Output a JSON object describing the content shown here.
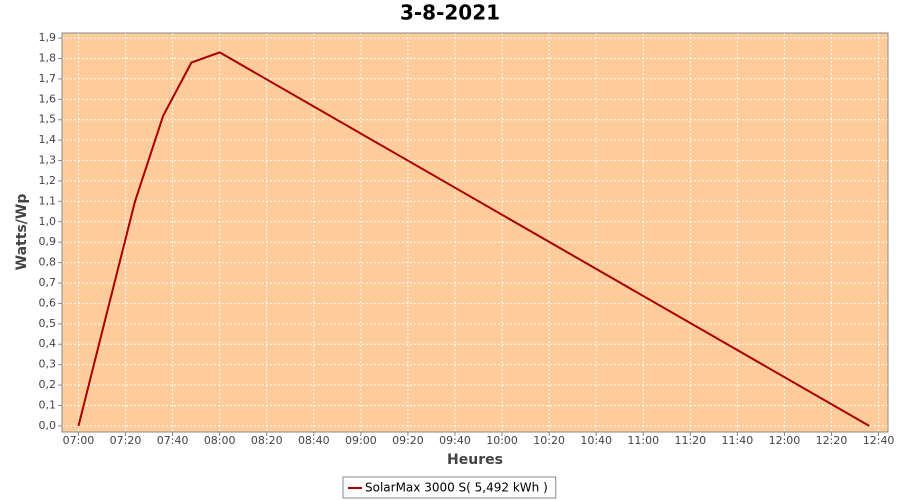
{
  "chart_data": {
    "type": "line",
    "title": "3-8-2021",
    "xlabel": "Heures",
    "ylabel": "Watts/Wp",
    "x": [
      "07:00",
      "07:12",
      "07:24",
      "07:36",
      "07:48",
      "08:00",
      "12:36"
    ],
    "series": [
      {
        "name": "SolarMax 3000 S( 5,492 kWh )",
        "color": "#aa0000",
        "values": [
          0,
          0.55,
          1.1,
          1.52,
          1.78,
          1.83,
          0
        ]
      }
    ],
    "xlim": [
      "06:53",
      "12:44"
    ],
    "xticks": [
      "07:00",
      "07:20",
      "07:40",
      "08:00",
      "08:20",
      "08:40",
      "09:00",
      "09:20",
      "09:40",
      "10:00",
      "10:20",
      "10:40",
      "11:00",
      "11:20",
      "11:40",
      "12:00",
      "12:20",
      "12:40"
    ],
    "ylim": [
      -0.03,
      1.925
    ],
    "yticks": [
      {
        "value": 0,
        "label": "0,0"
      },
      {
        "value": 0.1,
        "label": "0,1"
      },
      {
        "value": 0.2,
        "label": "0,2"
      },
      {
        "value": 0.3,
        "label": "0,3"
      },
      {
        "value": 0.4,
        "label": "0,4"
      },
      {
        "value": 0.5,
        "label": "0,5"
      },
      {
        "value": 0.6,
        "label": "0,6"
      },
      {
        "value": 0.7,
        "label": "0,7"
      },
      {
        "value": 0.8,
        "label": "0,8"
      },
      {
        "value": 0.9,
        "label": "0,9"
      },
      {
        "value": 1.0,
        "label": "1,0"
      },
      {
        "value": 1.1,
        "label": "1,1"
      },
      {
        "value": 1.2,
        "label": "1,2"
      },
      {
        "value": 1.3,
        "label": "1,3"
      },
      {
        "value": 1.4,
        "label": "1,4"
      },
      {
        "value": 1.5,
        "label": "1,5"
      },
      {
        "value": 1.6,
        "label": "1,6"
      },
      {
        "value": 1.7,
        "label": "1,7"
      },
      {
        "value": 1.8,
        "label": "1,8"
      },
      {
        "value": 1.9,
        "label": "1,9"
      }
    ],
    "grid": true,
    "background": "#fecb9a",
    "legend": "bottom"
  }
}
